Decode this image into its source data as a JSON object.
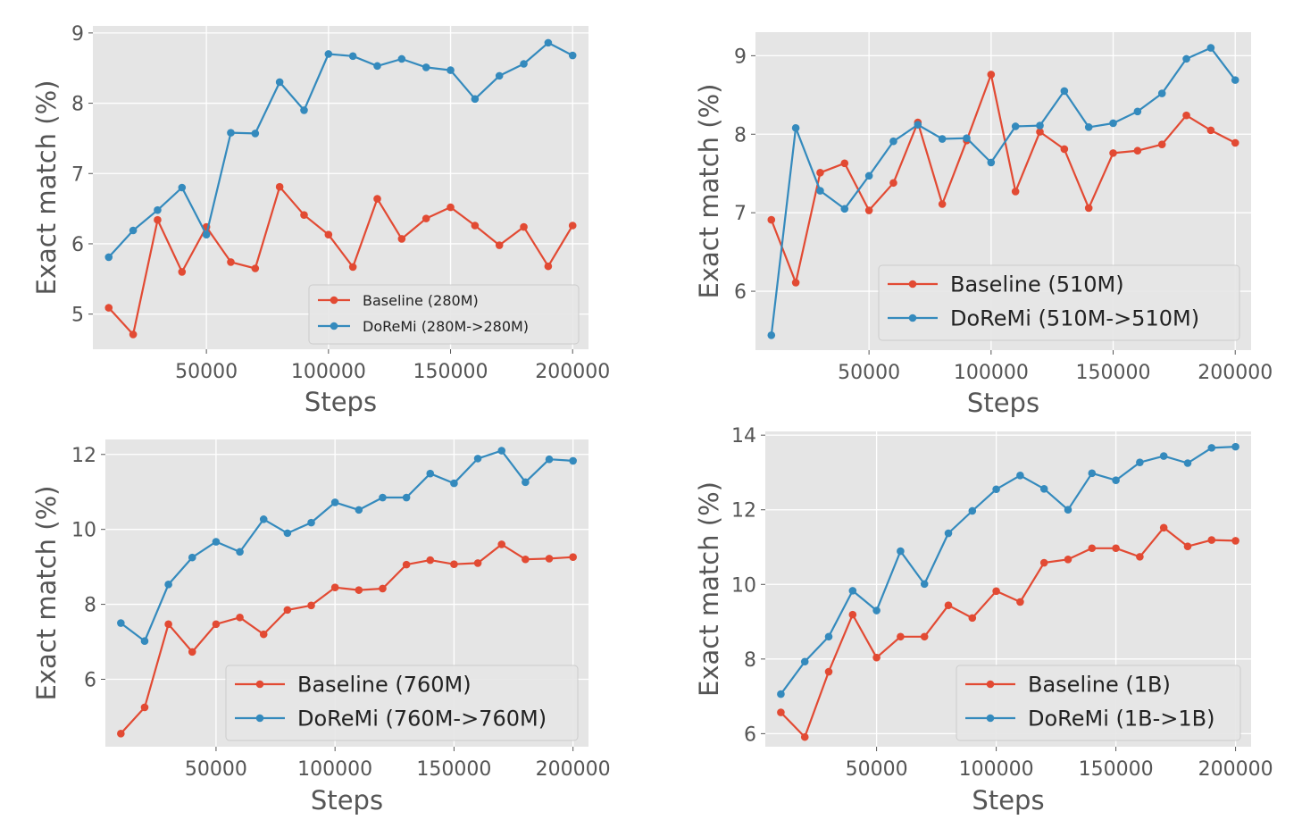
{
  "chart_data": [
    {
      "type": "line",
      "xlabel": "Steps",
      "ylabel": "Exact match (%)",
      "xlim": [
        3500,
        206500
      ],
      "ylim": [
        4.5,
        9.1
      ],
      "xticks": [
        50000,
        100000,
        150000,
        200000
      ],
      "xtick_labels": [
        "50000",
        "100000",
        "150000",
        "200000"
      ],
      "yticks": [
        5,
        6,
        7,
        8,
        9
      ],
      "ytick_labels": [
        "5",
        "6",
        "7",
        "8",
        "9"
      ],
      "grid": true,
      "legend_position": "lower-right",
      "legend_size": "small",
      "x": [
        10000,
        20000,
        30000,
        40000,
        50000,
        60000,
        70000,
        80000,
        90000,
        100000,
        110000,
        120000,
        130000,
        140000,
        150000,
        160000,
        170000,
        180000,
        190000,
        200000
      ],
      "series": [
        {
          "name": "Baseline (280M)",
          "color": "#E24A33",
          "values": [
            5.09,
            4.71,
            6.34,
            5.6,
            6.24,
            5.74,
            5.65,
            6.81,
            6.41,
            6.13,
            5.67,
            6.64,
            6.07,
            6.36,
            6.52,
            6.26,
            5.98,
            6.24,
            5.68,
            6.26
          ]
        },
        {
          "name": "DoReMi (280M->280M)",
          "color": "#348ABD",
          "values": [
            5.81,
            6.19,
            6.48,
            6.8,
            6.13,
            7.58,
            7.57,
            8.3,
            7.9,
            8.7,
            8.67,
            8.53,
            8.63,
            8.51,
            8.47,
            8.06,
            8.39,
            8.56,
            8.86,
            8.68
          ]
        }
      ]
    },
    {
      "type": "line",
      "xlabel": "Steps",
      "ylabel": "Exact match (%)",
      "xlim": [
        3500,
        206500
      ],
      "ylim": [
        5.25,
        9.3
      ],
      "xticks": [
        50000,
        100000,
        150000,
        200000
      ],
      "xtick_labels": [
        "50000",
        "100000",
        "150000",
        "200000"
      ],
      "yticks": [
        6,
        7,
        8,
        9
      ],
      "ytick_labels": [
        "6",
        "7",
        "8",
        "9"
      ],
      "grid": true,
      "legend_position": "lower-right",
      "legend_size": "large",
      "x": [
        10000,
        20000,
        30000,
        40000,
        50000,
        60000,
        70000,
        80000,
        90000,
        100000,
        110000,
        120000,
        130000,
        140000,
        150000,
        160000,
        170000,
        180000,
        190000,
        200000
      ],
      "series": [
        {
          "name": "Baseline (510M)",
          "color": "#E24A33",
          "values": [
            6.91,
            6.11,
            7.51,
            7.63,
            7.03,
            7.38,
            8.15,
            7.11,
            7.92,
            8.76,
            7.27,
            8.03,
            7.81,
            7.06,
            7.76,
            7.79,
            7.87,
            8.24,
            8.05,
            7.89
          ]
        },
        {
          "name": "DoReMi (510M->510M)",
          "color": "#348ABD",
          "values": [
            5.44,
            8.08,
            7.28,
            7.05,
            7.47,
            7.91,
            8.12,
            7.94,
            7.95,
            7.64,
            8.1,
            8.11,
            8.55,
            8.09,
            8.14,
            8.29,
            8.52,
            8.96,
            9.1,
            8.69
          ]
        }
      ]
    },
    {
      "type": "line",
      "xlabel": "Steps",
      "ylabel": "Exact match (%)",
      "xlim": [
        3500,
        206500
      ],
      "ylim": [
        4.2,
        12.4
      ],
      "xticks": [
        50000,
        100000,
        150000,
        200000
      ],
      "xtick_labels": [
        "50000",
        "100000",
        "150000",
        "200000"
      ],
      "yticks": [
        6,
        8,
        10,
        12
      ],
      "ytick_labels": [
        "6",
        "8",
        "10",
        "12"
      ],
      "grid": true,
      "legend_position": "lower-right",
      "legend_size": "large",
      "x": [
        10000,
        20000,
        30000,
        40000,
        50000,
        60000,
        70000,
        80000,
        90000,
        100000,
        110000,
        120000,
        130000,
        140000,
        150000,
        160000,
        170000,
        180000,
        190000,
        200000
      ],
      "series": [
        {
          "name": "Baseline (760M)",
          "color": "#E24A33",
          "values": [
            4.55,
            5.25,
            7.47,
            6.73,
            7.47,
            7.65,
            7.2,
            7.85,
            7.97,
            8.45,
            8.38,
            8.42,
            9.06,
            9.18,
            9.07,
            9.1,
            9.6,
            9.2,
            9.22,
            9.26
          ]
        },
        {
          "name": "DoReMi (760M->760M)",
          "color": "#348ABD",
          "values": [
            7.5,
            7.02,
            8.53,
            9.25,
            9.67,
            9.4,
            10.27,
            9.9,
            10.18,
            10.72,
            10.52,
            10.85,
            10.85,
            11.49,
            11.23,
            11.89,
            12.1,
            11.26,
            11.87,
            11.83
          ]
        }
      ]
    },
    {
      "type": "line",
      "xlabel": "Steps",
      "ylabel": "Exact match (%)",
      "xlim": [
        3500,
        206500
      ],
      "ylim": [
        5.65,
        14.1
      ],
      "xticks": [
        50000,
        100000,
        150000,
        200000
      ],
      "xtick_labels": [
        "50000",
        "100000",
        "150000",
        "200000"
      ],
      "yticks": [
        6,
        8,
        10,
        12,
        14
      ],
      "ytick_labels": [
        "6",
        "8",
        "10",
        "12",
        "14"
      ],
      "grid": true,
      "legend_position": "lower-right",
      "legend_size": "large",
      "x": [
        10000,
        20000,
        30000,
        40000,
        50000,
        60000,
        70000,
        80000,
        90000,
        100000,
        110000,
        120000,
        130000,
        140000,
        150000,
        160000,
        170000,
        180000,
        190000,
        200000
      ],
      "series": [
        {
          "name": "Baseline (1B)",
          "color": "#E24A33",
          "values": [
            6.57,
            5.91,
            7.66,
            9.19,
            8.04,
            8.6,
            8.6,
            9.44,
            9.1,
            9.82,
            9.53,
            10.58,
            10.67,
            10.97,
            10.97,
            10.74,
            11.52,
            11.02,
            11.19,
            11.17
          ]
        },
        {
          "name": "DoReMi (1B->1B)",
          "color": "#348ABD",
          "values": [
            7.06,
            7.93,
            8.6,
            9.83,
            9.3,
            10.89,
            10.01,
            11.37,
            11.97,
            12.55,
            12.92,
            12.56,
            12.0,
            12.98,
            12.79,
            13.27,
            13.44,
            13.25,
            13.66,
            13.69
          ]
        }
      ]
    }
  ]
}
